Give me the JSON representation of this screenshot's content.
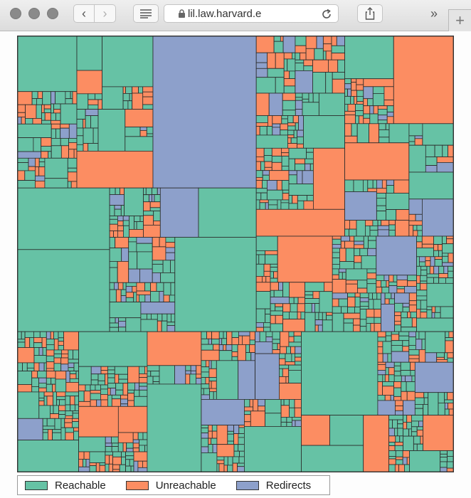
{
  "browser": {
    "url": "lil.law.harvard.e",
    "overflow_label": "»",
    "new_tab_label": "+",
    "icons": [
      "back-icon",
      "forward-icon",
      "reader-icon",
      "lock-icon",
      "reload-icon",
      "share-icon"
    ]
  },
  "chart_data": {
    "type": "treemap",
    "title": "",
    "categories": [
      "Reachable",
      "Unreachable",
      "Redirects"
    ],
    "colors": {
      "Reachable": "#66c2a5",
      "Unreachable": "#fc8d62",
      "Redirects": "#8da0cb"
    },
    "legend": "bottom-left",
    "grid": false
  },
  "legend": {
    "items": [
      {
        "label": "Reachable",
        "color": "#66c2a5"
      },
      {
        "label": "Unreachable",
        "color": "#fc8d62"
      },
      {
        "label": "Redirects",
        "color": "#8da0cb"
      }
    ]
  }
}
